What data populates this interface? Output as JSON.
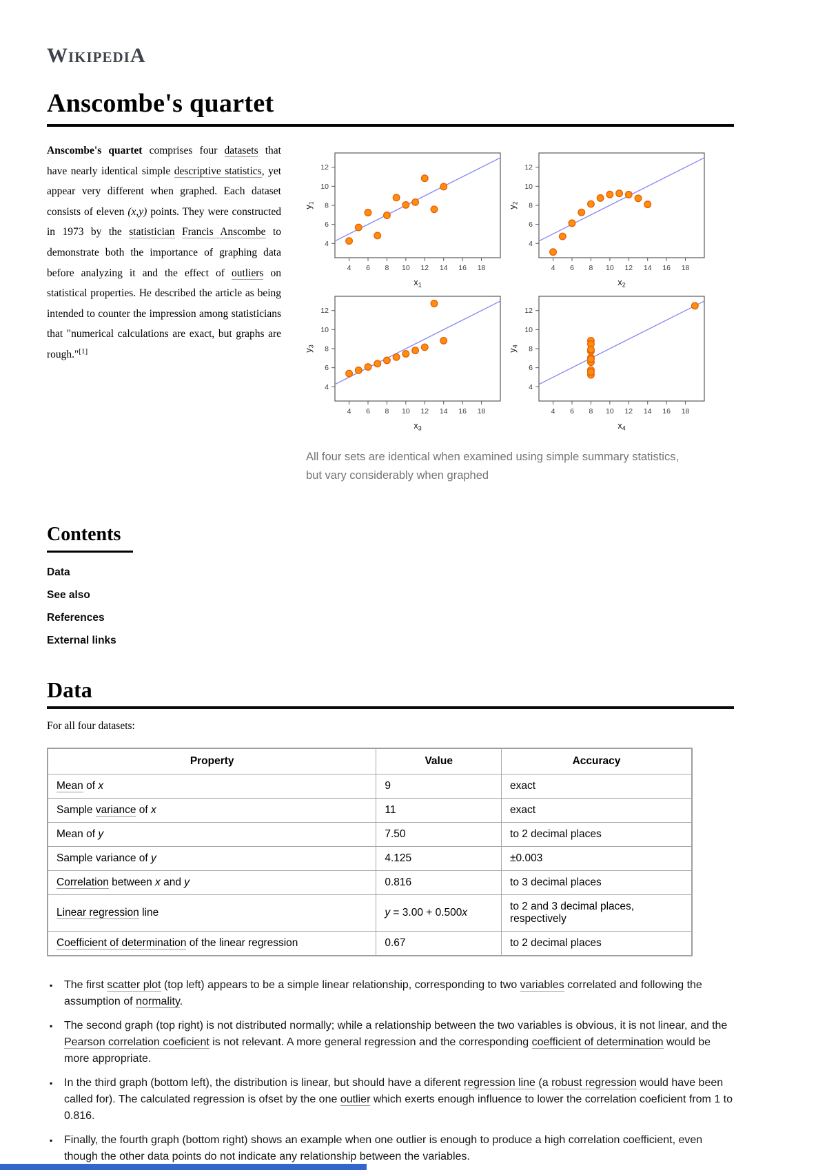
{
  "brand": {
    "wordmark": "WikipediA"
  },
  "page_title": "Anscombe's quartet",
  "intro": {
    "segments": [
      {
        "t": "Anscombe's quartet",
        "b": true
      },
      {
        "t": " comprises four "
      },
      {
        "t": "datasets",
        "link": true
      },
      {
        "t": " that have nearly identical simple "
      },
      {
        "t": "descriptive statistics",
        "link": true
      },
      {
        "t": ", yet appear very different when graphed. Each dataset consists of eleven "
      },
      {
        "t": "(x,y)",
        "i": true
      },
      {
        "t": " points. They were constructed in 1973 by the "
      },
      {
        "t": "statistician",
        "link": true
      },
      {
        "t": " "
      },
      {
        "t": "Francis Anscombe",
        "link": true
      },
      {
        "t": " to demonstrate both the importance of graphing data before analyzing it and the effect of "
      },
      {
        "t": "outliers",
        "link": true
      },
      {
        "t": " on statistical properties. He described the article as being intended to counter the impression among statisticians that \"numerical calculations are exact, but graphs are rough.\""
      },
      {
        "t": "[1]",
        "sup": true
      }
    ]
  },
  "figure": {
    "caption": "All four sets are identical when examined using simple summary statistics, but vary considerably when graphed"
  },
  "contents": {
    "title": "Contents",
    "items": [
      "Data",
      "See also",
      "References",
      "External links"
    ]
  },
  "data_section": {
    "title": "Data",
    "lead": "For all four datasets:"
  },
  "table": {
    "headers": [
      "Property",
      "Value",
      "Accuracy"
    ],
    "rows": [
      {
        "property": [
          {
            "t": "Mean",
            "link": true
          },
          {
            "t": " of "
          },
          {
            "t": "x",
            "i": true
          }
        ],
        "value": [
          {
            "t": "9"
          }
        ],
        "accuracy": "exact"
      },
      {
        "property": [
          {
            "t": "Sample "
          },
          {
            "t": "variance",
            "link": true
          },
          {
            "t": " of "
          },
          {
            "t": "x",
            "i": true
          }
        ],
        "value": [
          {
            "t": "11"
          }
        ],
        "accuracy": "exact"
      },
      {
        "property": [
          {
            "t": "Mean of "
          },
          {
            "t": "y",
            "i": true
          }
        ],
        "value": [
          {
            "t": "7.50"
          }
        ],
        "accuracy": "to 2 decimal places"
      },
      {
        "property": [
          {
            "t": "Sample variance of "
          },
          {
            "t": "y",
            "i": true
          }
        ],
        "value": [
          {
            "t": "4.125"
          }
        ],
        "accuracy": "±0.003"
      },
      {
        "property": [
          {
            "t": "Correlation",
            "link": true
          },
          {
            "t": " between "
          },
          {
            "t": "x",
            "i": true
          },
          {
            "t": " and "
          },
          {
            "t": "y",
            "i": true
          }
        ],
        "value": [
          {
            "t": "0.816"
          }
        ],
        "accuracy": "to 3 decimal places"
      },
      {
        "property": [
          {
            "t": "Linear regression",
            "link": true
          },
          {
            "t": " line"
          }
        ],
        "value": [
          {
            "t": "y",
            "i": true
          },
          {
            "t": " = 3.00 + 0.500"
          },
          {
            "t": "x",
            "i": true
          }
        ],
        "accuracy": "to 2 and 3 decimal places, respectively"
      },
      {
        "property": [
          {
            "t": "Coefficient of determination",
            "link": true
          },
          {
            "t": " of the linear regression"
          }
        ],
        "value": [
          {
            "t": "0.67"
          }
        ],
        "accuracy": "to 2 decimal places"
      }
    ]
  },
  "notes": [
    [
      {
        "t": "The first "
      },
      {
        "t": "scatter plot",
        "link": true
      },
      {
        "t": " (top left) appears to be a simple linear relationship, corresponding to two "
      },
      {
        "t": "variables",
        "link": true
      },
      {
        "t": " correlated and following the assumption of "
      },
      {
        "t": "normality",
        "link": true
      },
      {
        "t": "."
      }
    ],
    [
      {
        "t": "The second graph (top right) is not distributed normally; while a relationship between the two variables is obvious, it is not linear, and the "
      },
      {
        "t": "Pearson correlation coeficient",
        "link": true
      },
      {
        "t": " is not relevant. A more general regression and the corresponding "
      },
      {
        "t": "coefficient of determination",
        "link": true
      },
      {
        "t": " would be more appropriate."
      }
    ],
    [
      {
        "t": "In the third graph (bottom left), the distribution is linear, but should have a diferent "
      },
      {
        "t": "regression line",
        "link": true
      },
      {
        "t": " (a "
      },
      {
        "t": "robust regression",
        "link": true
      },
      {
        "t": " would have been called for). The calculated regression is ofset by the one "
      },
      {
        "t": "outlier",
        "link": true
      },
      {
        "t": " which exerts enough influence to lower the correlation coeficient from 1 to 0.816."
      }
    ],
    [
      {
        "t": "Finally, the fourth graph (bottom right) shows an example when one outlier is enough to produce a high correlation coefficient, even though the other data points do not indicate any relationship between the variables."
      }
    ]
  ],
  "chart_data": [
    {
      "type": "scatter",
      "xlabel": {
        "base": "x",
        "sub": "1"
      },
      "ylabel": {
        "base": "y",
        "sub": "1"
      },
      "x": [
        10,
        8,
        13,
        9,
        11,
        14,
        6,
        4,
        12,
        7,
        5
      ],
      "y": [
        8.04,
        6.95,
        7.58,
        8.81,
        8.33,
        9.96,
        7.24,
        4.26,
        10.84,
        4.82,
        5.68
      ],
      "xticks": [
        4,
        6,
        8,
        10,
        12,
        14,
        16,
        18
      ],
      "yticks": [
        4,
        6,
        8,
        10,
        12
      ],
      "xlim": [
        2.5,
        20
      ],
      "ylim": [
        2.5,
        13.5
      ],
      "regression_line": {
        "intercept": 3.0,
        "slope": 0.5
      },
      "grid": false,
      "legend": false
    },
    {
      "type": "scatter",
      "xlabel": {
        "base": "x",
        "sub": "2"
      },
      "ylabel": {
        "base": "y",
        "sub": "2"
      },
      "x": [
        10,
        8,
        13,
        9,
        11,
        14,
        6,
        4,
        12,
        7,
        5
      ],
      "y": [
        9.14,
        8.14,
        8.74,
        8.77,
        9.26,
        8.1,
        6.13,
        3.1,
        9.13,
        7.26,
        4.74
      ],
      "xticks": [
        4,
        6,
        8,
        10,
        12,
        14,
        16,
        18
      ],
      "yticks": [
        4,
        6,
        8,
        10,
        12
      ],
      "xlim": [
        2.5,
        20
      ],
      "ylim": [
        2.5,
        13.5
      ],
      "regression_line": {
        "intercept": 3.0,
        "slope": 0.5
      },
      "grid": false,
      "legend": false
    },
    {
      "type": "scatter",
      "xlabel": {
        "base": "x",
        "sub": "3"
      },
      "ylabel": {
        "base": "y",
        "sub": "3"
      },
      "x": [
        10,
        8,
        13,
        9,
        11,
        14,
        6,
        4,
        12,
        7,
        5
      ],
      "y": [
        7.46,
        6.77,
        12.74,
        7.11,
        7.81,
        8.84,
        6.08,
        5.39,
        8.15,
        6.42,
        5.73
      ],
      "xticks": [
        4,
        6,
        8,
        10,
        12,
        14,
        16,
        18
      ],
      "yticks": [
        4,
        6,
        8,
        10,
        12
      ],
      "xlim": [
        2.5,
        20
      ],
      "ylim": [
        2.5,
        13.5
      ],
      "regression_line": {
        "intercept": 3.0,
        "slope": 0.5
      },
      "grid": false,
      "legend": false
    },
    {
      "type": "scatter",
      "xlabel": {
        "base": "x",
        "sub": "4"
      },
      "ylabel": {
        "base": "y",
        "sub": "4"
      },
      "x": [
        8,
        8,
        8,
        8,
        8,
        8,
        8,
        19,
        8,
        8,
        8
      ],
      "y": [
        6.58,
        5.76,
        7.71,
        8.84,
        8.47,
        7.04,
        5.25,
        12.5,
        5.56,
        7.91,
        6.89
      ],
      "xticks": [
        4,
        6,
        8,
        10,
        12,
        14,
        16,
        18
      ],
      "yticks": [
        4,
        6,
        8,
        10,
        12
      ],
      "xlim": [
        2.5,
        20
      ],
      "ylim": [
        2.5,
        13.5
      ],
      "regression_line": {
        "intercept": 3.0,
        "slope": 0.5
      },
      "grid": false,
      "legend": false
    }
  ],
  "colors": {
    "point_fill": "#ff8e0e",
    "point_stroke": "#e85d04",
    "regression_line": "#8585f2",
    "axis": "#5a5a5a",
    "tick_label": "#3a3a3a",
    "link_underline": "#9b9b9b",
    "caption_text": "#747474",
    "bottom_bar": "#3366cc"
  }
}
